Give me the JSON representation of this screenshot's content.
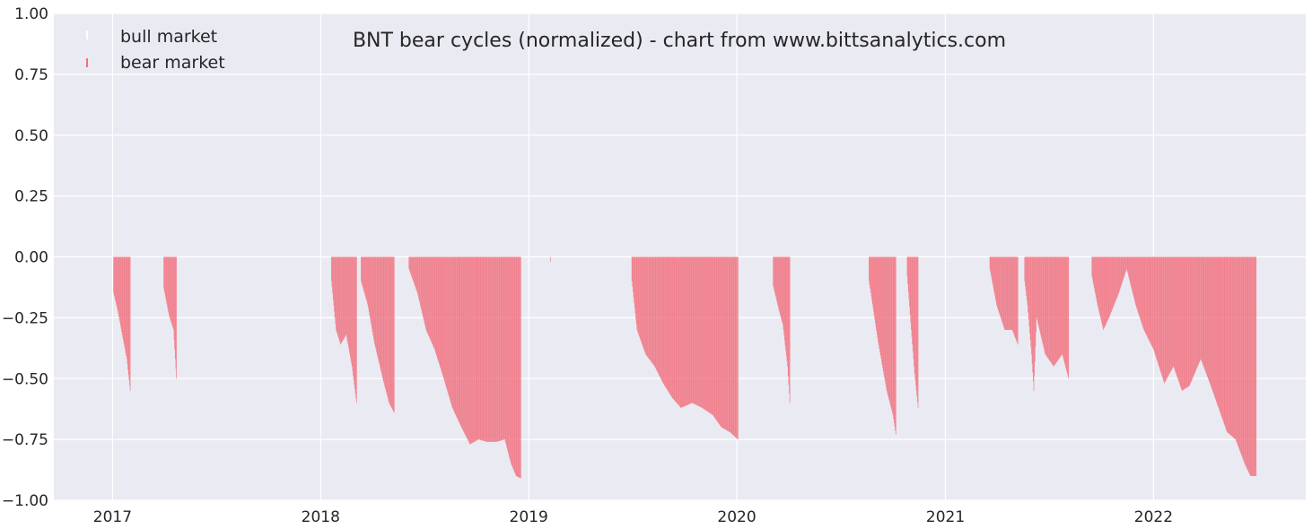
{
  "chart_data": {
    "type": "bar",
    "title": "BNT bear cycles (normalized)  - chart from www.bittsanalytics.com",
    "xlabel": "",
    "ylabel": "",
    "ylim": [
      -1.0,
      1.0
    ],
    "xlim": [
      "2016-09-20",
      "2022-09-25"
    ],
    "y_ticks": [
      "1.00",
      "0.75",
      "0.50",
      "0.25",
      "0.00",
      "−0.25",
      "−0.50",
      "−0.75",
      "−1.00"
    ],
    "y_tick_values": [
      1.0,
      0.75,
      0.5,
      0.25,
      0.0,
      -0.25,
      -0.5,
      -0.75,
      -1.0
    ],
    "x_ticks": [
      "2017",
      "2018",
      "2019",
      "2020",
      "2021",
      "2022"
    ],
    "x_tick_dates": [
      "2017-01-01",
      "2018-01-01",
      "2019-01-01",
      "2020-01-01",
      "2021-01-01",
      "2022-01-01"
    ],
    "grid": true,
    "legend_position": "top-left",
    "colors": {
      "background": "#eaeaf2",
      "grid": "#ffffff",
      "bear": "#f1707e",
      "bull": "#ffffff"
    },
    "series": [
      {
        "name": "bull market",
        "color": "#ffffff",
        "values": []
      },
      {
        "name": "bear market",
        "color": "#f1707e",
        "segments": [
          {
            "points": [
              [
                "2017-01-03",
                -0.15
              ],
              [
                "2017-01-10",
                -0.22
              ],
              [
                "2017-01-18",
                -0.32
              ],
              [
                "2017-01-26",
                -0.42
              ],
              [
                "2017-02-01",
                -0.55
              ]
            ]
          },
          {
            "points": [
              [
                "2017-04-01",
                -0.13
              ],
              [
                "2017-04-10",
                -0.24
              ],
              [
                "2017-04-18",
                -0.3
              ],
              [
                "2017-04-23",
                -0.5
              ]
            ]
          },
          {
            "points": [
              [
                "2018-01-20",
                -0.1
              ],
              [
                "2018-01-28",
                -0.3
              ],
              [
                "2018-02-05",
                -0.36
              ],
              [
                "2018-02-15",
                -0.32
              ],
              [
                "2018-02-25",
                -0.45
              ],
              [
                "2018-03-05",
                -0.6
              ]
            ]
          },
          {
            "points": [
              [
                "2018-03-13",
                -0.1
              ],
              [
                "2018-03-25",
                -0.2
              ],
              [
                "2018-04-05",
                -0.35
              ],
              [
                "2018-04-20",
                -0.5
              ],
              [
                "2018-05-01",
                -0.6
              ],
              [
                "2018-05-10",
                -0.64
              ]
            ]
          },
          {
            "points": [
              [
                "2018-06-05",
                -0.05
              ],
              [
                "2018-06-20",
                -0.15
              ],
              [
                "2018-07-05",
                -0.3
              ],
              [
                "2018-07-20",
                -0.38
              ],
              [
                "2018-08-05",
                -0.5
              ],
              [
                "2018-08-20",
                -0.62
              ],
              [
                "2018-09-05",
                -0.7
              ],
              [
                "2018-09-20",
                -0.77
              ],
              [
                "2018-10-05",
                -0.75
              ],
              [
                "2018-10-20",
                -0.76
              ],
              [
                "2018-11-05",
                -0.76
              ],
              [
                "2018-11-20",
                -0.75
              ],
              [
                "2018-12-01",
                -0.85
              ],
              [
                "2018-12-10",
                -0.9
              ],
              [
                "2018-12-18",
                -0.91
              ]
            ]
          },
          {
            "points": [
              [
                "2019-02-08",
                -0.02
              ]
            ]
          },
          {
            "points": [
              [
                "2019-07-01",
                -0.1
              ],
              [
                "2019-07-10",
                -0.3
              ],
              [
                "2019-07-25",
                -0.4
              ],
              [
                "2019-08-10",
                -0.45
              ],
              [
                "2019-08-25",
                -0.52
              ],
              [
                "2019-09-10",
                -0.58
              ],
              [
                "2019-09-25",
                -0.62
              ],
              [
                "2019-10-15",
                -0.6
              ],
              [
                "2019-11-01",
                -0.62
              ],
              [
                "2019-11-20",
                -0.65
              ],
              [
                "2019-12-05",
                -0.7
              ],
              [
                "2019-12-20",
                -0.72
              ],
              [
                "2020-01-03",
                -0.75
              ]
            ]
          },
          {
            "points": [
              [
                "2020-03-05",
                -0.12
              ],
              [
                "2020-03-15",
                -0.22
              ],
              [
                "2020-03-22",
                -0.28
              ],
              [
                "2020-03-30",
                -0.45
              ],
              [
                "2020-04-03",
                -0.6
              ]
            ]
          },
          {
            "points": [
              [
                "2020-08-20",
                -0.1
              ],
              [
                "2020-09-05",
                -0.35
              ],
              [
                "2020-09-20",
                -0.55
              ],
              [
                "2020-10-01",
                -0.65
              ],
              [
                "2020-10-06",
                -0.73
              ]
            ]
          },
          {
            "points": [
              [
                "2020-10-26",
                -0.08
              ],
              [
                "2020-11-02",
                -0.3
              ],
              [
                "2020-11-08",
                -0.48
              ],
              [
                "2020-11-14",
                -0.62
              ]
            ]
          },
          {
            "points": [
              [
                "2021-03-20",
                -0.05
              ],
              [
                "2021-04-01",
                -0.2
              ],
              [
                "2021-04-15",
                -0.3
              ],
              [
                "2021-04-28",
                -0.3
              ],
              [
                "2021-05-08",
                -0.36
              ]
            ]
          },
          {
            "points": [
              [
                "2021-05-20",
                -0.1
              ],
              [
                "2021-05-25",
                -0.2
              ],
              [
                "2021-06-01",
                -0.4
              ],
              [
                "2021-06-05",
                -0.55
              ],
              [
                "2021-06-10",
                -0.25
              ],
              [
                "2021-06-25",
                -0.4
              ],
              [
                "2021-07-10",
                -0.45
              ],
              [
                "2021-07-25",
                -0.4
              ],
              [
                "2021-08-05",
                -0.5
              ]
            ]
          },
          {
            "points": [
              [
                "2021-09-15",
                -0.08
              ],
              [
                "2021-09-25",
                -0.2
              ],
              [
                "2021-10-05",
                -0.3
              ],
              [
                "2021-10-15",
                -0.25
              ],
              [
                "2021-11-01",
                -0.15
              ],
              [
                "2021-11-15",
                -0.05
              ],
              [
                "2021-12-01",
                -0.2
              ],
              [
                "2021-12-15",
                -0.3
              ],
              [
                "2022-01-01",
                -0.38
              ],
              [
                "2022-01-20",
                -0.52
              ],
              [
                "2022-02-05",
                -0.45
              ],
              [
                "2022-02-20",
                -0.55
              ],
              [
                "2022-03-05",
                -0.53
              ],
              [
                "2022-03-25",
                -0.42
              ],
              [
                "2022-04-10",
                -0.52
              ],
              [
                "2022-04-25",
                -0.62
              ],
              [
                "2022-05-10",
                -0.72
              ],
              [
                "2022-05-25",
                -0.75
              ],
              [
                "2022-06-10",
                -0.85
              ],
              [
                "2022-06-20",
                -0.9
              ],
              [
                "2022-06-30",
                -0.9
              ]
            ]
          }
        ]
      }
    ]
  }
}
